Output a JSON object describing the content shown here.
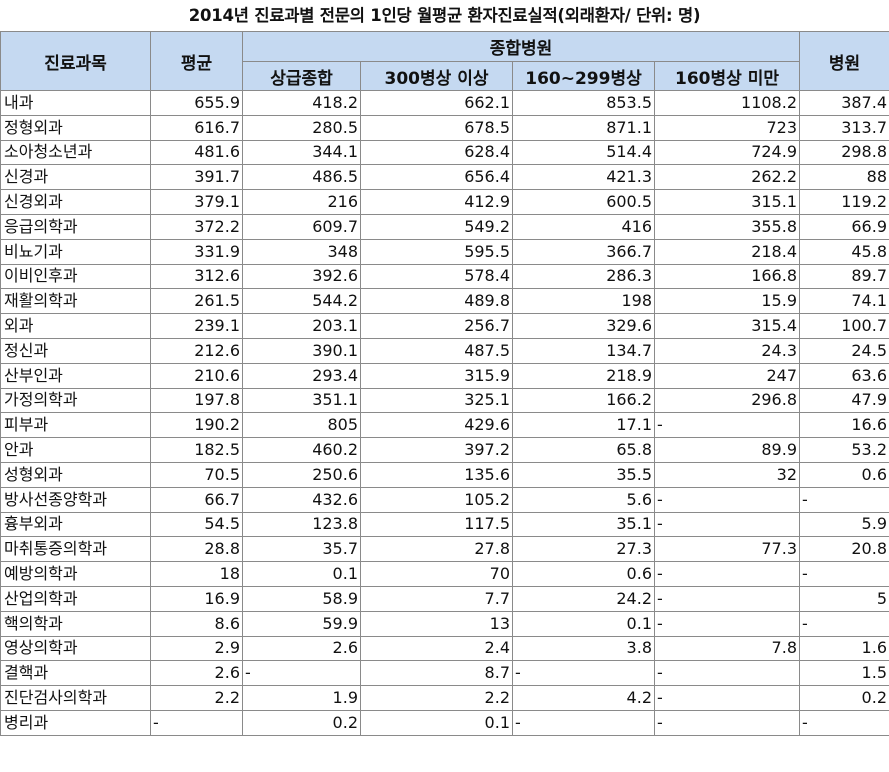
{
  "title": "2014년 진료과별 전문의 1인당 월평균 환자진료실적(외래환자/  단위: 명)",
  "headers": {
    "department": "진료과목",
    "average": "평균",
    "general_hospital": "종합병원",
    "hospital": "병원",
    "sub": [
      "상급종합",
      "300병상 이상",
      "160~299병상",
      "160병상 미만"
    ]
  },
  "chart_data": {
    "type": "table",
    "title": "2014년 진료과별 전문의 1인당 월평균 환자진료실적(외래환자/  단위: 명)",
    "columns": [
      "진료과목",
      "평균",
      "상급종합",
      "300병상 이상",
      "160~299병상",
      "160병상 미만",
      "병원"
    ],
    "rows": [
      [
        "내과",
        "655.9",
        "418.2",
        "662.1",
        "853.5",
        "1108.2",
        "387.4"
      ],
      [
        "정형외과",
        "616.7",
        "280.5",
        "678.5",
        "871.1",
        "723",
        "313.7"
      ],
      [
        "소아청소년과",
        "481.6",
        "344.1",
        "628.4",
        "514.4",
        "724.9",
        "298.8"
      ],
      [
        "신경과",
        "391.7",
        "486.5",
        "656.4",
        "421.3",
        "262.2",
        "88"
      ],
      [
        "신경외과",
        "379.1",
        "216",
        "412.9",
        "600.5",
        "315.1",
        "119.2"
      ],
      [
        "응급의학과",
        "372.2",
        "609.7",
        "549.2",
        "416",
        "355.8",
        "66.9"
      ],
      [
        "비뇨기과",
        "331.9",
        "348",
        "595.5",
        "366.7",
        "218.4",
        "45.8"
      ],
      [
        "이비인후과",
        "312.6",
        "392.6",
        "578.4",
        "286.3",
        "166.8",
        "89.7"
      ],
      [
        "재활의학과",
        "261.5",
        "544.2",
        "489.8",
        "198",
        "15.9",
        "74.1"
      ],
      [
        "외과",
        "239.1",
        "203.1",
        "256.7",
        "329.6",
        "315.4",
        "100.7"
      ],
      [
        "정신과",
        "212.6",
        "390.1",
        "487.5",
        "134.7",
        "24.3",
        "24.5"
      ],
      [
        "산부인과",
        "210.6",
        "293.4",
        "315.9",
        "218.9",
        "247",
        "63.6"
      ],
      [
        "가정의학과",
        "197.8",
        "351.1",
        "325.1",
        "166.2",
        "296.8",
        "47.9"
      ],
      [
        "피부과",
        "190.2",
        "805",
        "429.6",
        "17.1",
        "-",
        "16.6"
      ],
      [
        "안과",
        "182.5",
        "460.2",
        "397.2",
        "65.8",
        "89.9",
        "53.2"
      ],
      [
        "성형외과",
        "70.5",
        "250.6",
        "135.6",
        "35.5",
        "32",
        "0.6"
      ],
      [
        "방사선종양학과",
        "66.7",
        "432.6",
        "105.2",
        "5.6",
        "-",
        "-"
      ],
      [
        "흉부외과",
        "54.5",
        "123.8",
        "117.5",
        "35.1",
        "-",
        "5.9"
      ],
      [
        "마취통증의학과",
        "28.8",
        "35.7",
        "27.8",
        "27.3",
        "77.3",
        "20.8"
      ],
      [
        "예방의학과",
        "18",
        "0.1",
        "70",
        "0.6",
        "-",
        "-"
      ],
      [
        "산업의학과",
        "16.9",
        "58.9",
        "7.7",
        "24.2",
        "-",
        "5"
      ],
      [
        "핵의학과",
        "8.6",
        "59.9",
        "13",
        "0.1",
        "-",
        "-"
      ],
      [
        "영상의학과",
        "2.9",
        "2.6",
        "2.4",
        "3.8",
        "7.8",
        "1.6"
      ],
      [
        "결핵과",
        "2.6",
        "-",
        "8.7",
        "-",
        "-",
        "1.5"
      ],
      [
        "진단검사의학과",
        "2.2",
        "1.9",
        "2.2",
        "4.2",
        "-",
        "0.2"
      ],
      [
        "병리과",
        "-",
        "0.2",
        "0.1",
        "-",
        "-",
        "-"
      ]
    ]
  }
}
